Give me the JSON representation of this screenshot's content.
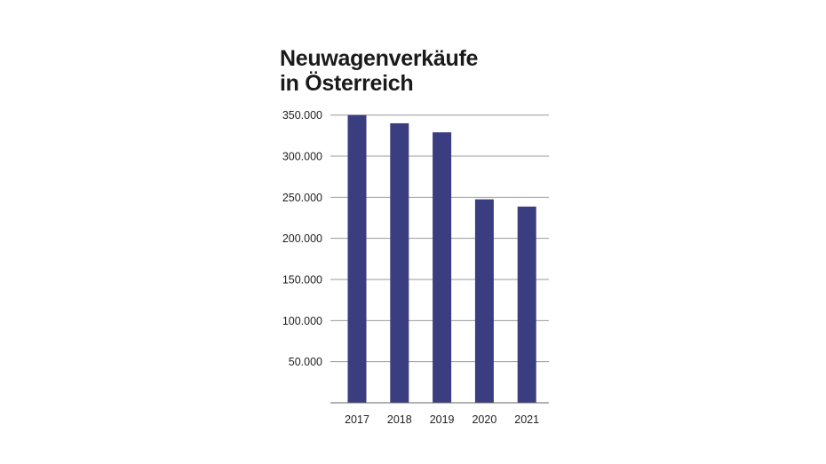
{
  "chart_data": {
    "type": "bar",
    "title_lines": [
      "Neuwagenverkäufe",
      "in Österreich"
    ],
    "categories": [
      "2017",
      "2018",
      "2019",
      "2020",
      "2021"
    ],
    "values": [
      353000,
      340000,
      329000,
      247500,
      238700
    ],
    "ylim": [
      0,
      350000
    ],
    "yticks": [
      50000,
      100000,
      150000,
      200000,
      250000,
      300000,
      350000
    ],
    "ytick_labels": [
      "50.000",
      "100.000",
      "150.000",
      "200.000",
      "250.000",
      "300.000",
      "350.000"
    ],
    "grid": true,
    "bar_color": "#3a3d7f",
    "xlabel": "",
    "ylabel": ""
  }
}
